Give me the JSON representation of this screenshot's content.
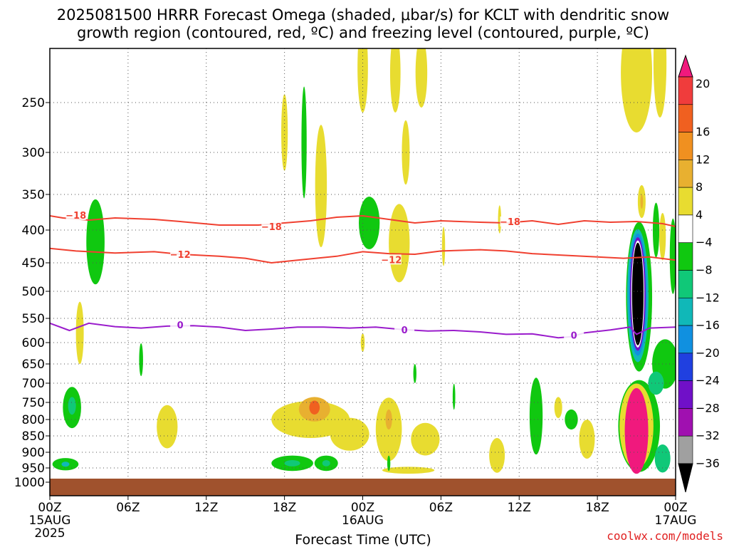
{
  "title_line1": "2025081500 HRRR Forecast Omega (shaded, μbar/s) for KCLT with dendritic snow",
  "title_line2": "growth region (contoured, red, ºC) and freezing level (contoured, purple, ºC)",
  "credit": "coolwx.com/models",
  "colors": {
    "dsg": "#f04030",
    "freezing": "#9a1ccc",
    "ground": "#a0522d",
    "grid": "#555555"
  },
  "chart_data": {
    "type": "heatmap",
    "xlabel": "Forecast Time (UTC)",
    "x_ticks": [
      {
        "h": 0,
        "line1": "00Z",
        "line2": "15AUG",
        "line3": "2025"
      },
      {
        "h": 6,
        "line1": "06Z",
        "line2": "",
        "line3": ""
      },
      {
        "h": 12,
        "line1": "12Z",
        "line2": "",
        "line3": ""
      },
      {
        "h": 18,
        "line1": "18Z",
        "line2": "",
        "line3": ""
      },
      {
        "h": 24,
        "line1": "00Z",
        "line2": "16AUG",
        "line3": ""
      },
      {
        "h": 30,
        "line1": "06Z",
        "line2": "",
        "line3": ""
      },
      {
        "h": 36,
        "line1": "12Z",
        "line2": "",
        "line3": ""
      },
      {
        "h": 42,
        "line1": "18Z",
        "line2": "",
        "line3": ""
      },
      {
        "h": 48,
        "line1": "00Z",
        "line2": "17AUG",
        "line3": ""
      }
    ],
    "xlim": [
      0,
      48
    ],
    "y_ticks": [
      250,
      300,
      350,
      400,
      450,
      500,
      550,
      600,
      650,
      700,
      750,
      800,
      850,
      900,
      950,
      1000
    ],
    "ylim": [
      1025,
      200
    ],
    "grid": true,
    "colorbar": {
      "labels": [
        "20",
        "16",
        "12",
        "8",
        "4",
        "-4",
        "-8",
        "-12",
        "-16",
        "-20",
        "-24",
        "-28",
        "-32",
        "-36"
      ],
      "colors": [
        "#f03c3c",
        "#f06020",
        "#f09020",
        "#e8b030",
        "#e8dc30",
        "#ffffff",
        "#10c810",
        "#10c878",
        "#10b8b8",
        "#1090e0",
        "#2040e0",
        "#7010c8",
        "#a010b0",
        "#a0a0a0"
      ],
      "top_color": "#f0197d",
      "bottom_color": "#000000"
    },
    "contours": [
      {
        "name": "-18",
        "color": "#f04030",
        "points": [
          [
            0,
            380
          ],
          [
            1,
            383
          ],
          [
            3,
            386
          ],
          [
            5,
            383
          ],
          [
            8,
            385
          ],
          [
            10,
            388
          ],
          [
            13,
            393
          ],
          [
            16,
            393
          ],
          [
            18,
            390
          ],
          [
            20,
            387
          ],
          [
            22,
            382
          ],
          [
            24,
            380
          ],
          [
            26,
            385
          ],
          [
            28,
            390
          ],
          [
            30,
            387
          ],
          [
            33,
            389
          ],
          [
            35,
            390
          ],
          [
            37,
            387
          ],
          [
            39,
            392
          ],
          [
            41,
            387
          ],
          [
            43,
            389
          ],
          [
            45,
            388
          ],
          [
            47,
            391
          ],
          [
            48,
            395
          ]
        ],
        "labels": [
          {
            "x": 2,
            "p": 380
          },
          {
            "x": 17,
            "p": 396
          },
          {
            "x": 35.3,
            "p": 389
          }
        ]
      },
      {
        "name": "-12",
        "color": "#f04030",
        "points": [
          [
            0,
            428
          ],
          [
            2,
            432
          ],
          [
            5,
            435
          ],
          [
            8,
            433
          ],
          [
            10,
            437
          ],
          [
            13,
            440
          ],
          [
            15,
            443
          ],
          [
            17,
            450
          ],
          [
            19,
            446
          ],
          [
            22,
            440
          ],
          [
            24,
            433
          ],
          [
            26,
            436
          ],
          [
            28,
            437
          ],
          [
            30,
            432
          ],
          [
            33,
            430
          ],
          [
            35,
            432
          ],
          [
            37,
            436
          ],
          [
            39,
            438
          ],
          [
            42,
            441
          ],
          [
            44,
            443
          ],
          [
            46,
            441
          ],
          [
            48,
            446
          ]
        ],
        "labels": [
          {
            "x": 10,
            "p": 438
          },
          {
            "x": 26.2,
            "p": 446
          }
        ]
      },
      {
        "name": "0",
        "color": "#9a1ccc",
        "points": [
          [
            0,
            560
          ],
          [
            1.5,
            575
          ],
          [
            3,
            560
          ],
          [
            5,
            567
          ],
          [
            7,
            570
          ],
          [
            9,
            566
          ],
          [
            11,
            565
          ],
          [
            13,
            568
          ],
          [
            15,
            575
          ],
          [
            17,
            572
          ],
          [
            19,
            568
          ],
          [
            21,
            568
          ],
          [
            23,
            570
          ],
          [
            25,
            568
          ],
          [
            27,
            573
          ],
          [
            29,
            576
          ],
          [
            31,
            575
          ],
          [
            33,
            578
          ],
          [
            35,
            583
          ],
          [
            37,
            582
          ],
          [
            39,
            590
          ],
          [
            40,
            588
          ],
          [
            41,
            580
          ],
          [
            43,
            574
          ],
          [
            44.5,
            568
          ],
          [
            45,
            583
          ],
          [
            46,
            570
          ],
          [
            48,
            568
          ]
        ],
        "labels": [
          {
            "x": 10,
            "p": 565
          },
          {
            "x": 27.2,
            "p": 575
          },
          {
            "x": 40.2,
            "p": 586
          }
        ]
      }
    ],
    "shaded_regions": [
      {
        "color": "#e8dc30",
        "cx": 2.3,
        "p": 580,
        "rx": 0.3,
        "rp": 65
      },
      {
        "color": "#10c810",
        "cx": 3.5,
        "p": 418,
        "rx": 0.7,
        "rp": 65
      },
      {
        "color": "#10c810",
        "cx": 1.7,
        "p": 765,
        "rx": 0.7,
        "rp": 58
      },
      {
        "color": "#10c878",
        "cx": 1.7,
        "p": 760,
        "rx": 0.3,
        "rp": 25
      },
      {
        "color": "#10c810",
        "cx": 1.2,
        "p": 938,
        "rx": 1.0,
        "rp": 20
      },
      {
        "color": "#10b8b8",
        "cx": 1.2,
        "p": 938,
        "rx": 0.3,
        "rp": 8
      },
      {
        "color": "#10c810",
        "cx": 7.0,
        "p": 640,
        "rx": 0.15,
        "rp": 40
      },
      {
        "color": "#e8dc30",
        "cx": 9.0,
        "p": 822,
        "rx": 0.8,
        "rp": 65
      },
      {
        "color": "#e8dc30",
        "cx": 18.0,
        "p": 280,
        "rx": 0.25,
        "rp": 40
      },
      {
        "color": "#10c810",
        "cx": 19.5,
        "p": 290,
        "rx": 0.2,
        "rp": 60
      },
      {
        "color": "#e8dc30",
        "cx": 20.8,
        "p": 340,
        "rx": 0.45,
        "rp": 75
      },
      {
        "color": "#e8dc30",
        "cx": 20.0,
        "p": 800,
        "rx": 3.0,
        "rp": 55
      },
      {
        "color": "#e8b030",
        "cx": 20.3,
        "p": 770,
        "rx": 1.2,
        "rp": 35
      },
      {
        "color": "#f06020",
        "cx": 20.3,
        "p": 765,
        "rx": 0.4,
        "rp": 20
      },
      {
        "color": "#e8dc30",
        "cx": 23.0,
        "p": 845,
        "rx": 1.5,
        "rp": 50
      },
      {
        "color": "#10c810",
        "cx": 18.6,
        "p": 935,
        "rx": 1.6,
        "rp": 25
      },
      {
        "color": "#10c878",
        "cx": 18.6,
        "p": 935,
        "rx": 0.6,
        "rp": 10
      },
      {
        "color": "#10c810",
        "cx": 21.2,
        "p": 935,
        "rx": 0.9,
        "rp": 25
      },
      {
        "color": "#10c878",
        "cx": 21.2,
        "p": 935,
        "rx": 0.3,
        "rp": 10
      },
      {
        "color": "#e8dc30",
        "cx": 24.0,
        "p": 215,
        "rx": 0.4,
        "rp": 45
      },
      {
        "color": "#e8dc30",
        "cx": 24.0,
        "p": 600,
        "rx": 0.15,
        "rp": 20
      },
      {
        "color": "#10c810",
        "cx": 24.5,
        "p": 390,
        "rx": 0.8,
        "rp": 38
      },
      {
        "color": "#e8dc30",
        "cx": 26.8,
        "p": 420,
        "rx": 0.8,
        "rp": 60
      },
      {
        "color": "#e8dc30",
        "cx": 26.5,
        "p": 220,
        "rx": 0.4,
        "rp": 40
      },
      {
        "color": "#e8dc30",
        "cx": 28.5,
        "p": 220,
        "rx": 0.45,
        "rp": 35
      },
      {
        "color": "#e8dc30",
        "cx": 27.3,
        "p": 300,
        "rx": 0.3,
        "rp": 35
      },
      {
        "color": "#e8dc30",
        "cx": 26.0,
        "p": 830,
        "rx": 1.0,
        "rp": 95
      },
      {
        "color": "#e8b030",
        "cx": 26.0,
        "p": 800,
        "rx": 0.25,
        "rp": 30
      },
      {
        "color": "#e8dc30",
        "cx": 28.8,
        "p": 860,
        "rx": 1.1,
        "rp": 50
      },
      {
        "color": "#e8dc30",
        "cx": 27.5,
        "p": 958,
        "rx": 2.0,
        "rp": 12
      },
      {
        "color": "#10c810",
        "cx": 26.0,
        "p": 935,
        "rx": 0.12,
        "rp": 25
      },
      {
        "color": "#10c810",
        "cx": 28.0,
        "p": 675,
        "rx": 0.12,
        "rp": 25
      },
      {
        "color": "#10c810",
        "cx": 31.0,
        "p": 735,
        "rx": 0.1,
        "rp": 35
      },
      {
        "color": "#e8dc30",
        "cx": 30.2,
        "p": 425,
        "rx": 0.12,
        "rp": 30
      },
      {
        "color": "#e8dc30",
        "cx": 34.5,
        "p": 385,
        "rx": 0.12,
        "rp": 20
      },
      {
        "color": "#e8dc30",
        "cx": 34.3,
        "p": 910,
        "rx": 0.6,
        "rp": 55
      },
      {
        "color": "#10c810",
        "cx": 37.3,
        "p": 790,
        "rx": 0.5,
        "rp": 110
      },
      {
        "color": "#e8dc30",
        "cx": 39.0,
        "p": 765,
        "rx": 0.3,
        "rp": 30
      },
      {
        "color": "#10c810",
        "cx": 40.0,
        "p": 800,
        "rx": 0.5,
        "rp": 30
      },
      {
        "color": "#e8dc30",
        "cx": 41.2,
        "p": 860,
        "rx": 0.6,
        "rp": 60
      },
      {
        "color": "#e8dc30",
        "cx": 45.0,
        "p": 220,
        "rx": 1.2,
        "rp": 60
      },
      {
        "color": "#e8dc30",
        "cx": 45.4,
        "p": 360,
        "rx": 0.3,
        "rp": 22
      },
      {
        "color": "#e8b030",
        "cx": 45.4,
        "p": 360,
        "rx": 0.1,
        "rp": 10
      },
      {
        "color": "#e8dc30",
        "cx": 46.8,
        "p": 210,
        "rx": 0.5,
        "rp": 55
      },
      {
        "color": "#10c810",
        "cx": 46.5,
        "p": 400,
        "rx": 0.25,
        "rp": 40
      },
      {
        "color": "#e8dc30",
        "cx": 47.0,
        "p": 410,
        "rx": 0.25,
        "rp": 35
      },
      {
        "color": "#10c810",
        "cx": 47.8,
        "p": 440,
        "rx": 0.25,
        "rp": 60
      },
      {
        "color": "#10c810",
        "cx": 47.2,
        "p": 650,
        "rx": 1.0,
        "rp": 60
      },
      {
        "color": "#10c810",
        "cx": 45.2,
        "p": 820,
        "rx": 1.6,
        "rp": 135
      },
      {
        "color": "#10c878",
        "cx": 47.0,
        "p": 920,
        "rx": 0.6,
        "rp": 45
      },
      {
        "color": "#10c878",
        "cx": 46.5,
        "p": 700,
        "rx": 0.6,
        "rp": 30
      },
      {
        "color": "#e8dc30",
        "cx": 45.0,
        "p": 820,
        "rx": 1.3,
        "rp": 125
      },
      {
        "color": "#f0197d",
        "cx": 45.0,
        "p": 835,
        "rx": 0.9,
        "rp": 128
      },
      {
        "color": "#10c810",
        "cx": 45.2,
        "p": 510,
        "rx": 1.0,
        "rp": 135
      },
      {
        "color": "#10b8b8",
        "cx": 45.1,
        "p": 508,
        "rx": 0.82,
        "rp": 120
      },
      {
        "color": "#1090e0",
        "cx": 45.1,
        "p": 506,
        "rx": 0.7,
        "rp": 110
      },
      {
        "color": "#7010c8",
        "cx": 45.1,
        "p": 505,
        "rx": 0.6,
        "rp": 102
      },
      {
        "color": "#ffffff",
        "cx": 45.1,
        "p": 505,
        "rx": 0.5,
        "rp": 96
      },
      {
        "color": "#000000",
        "cx": 45.1,
        "p": 505,
        "rx": 0.44,
        "rp": 92
      }
    ]
  }
}
